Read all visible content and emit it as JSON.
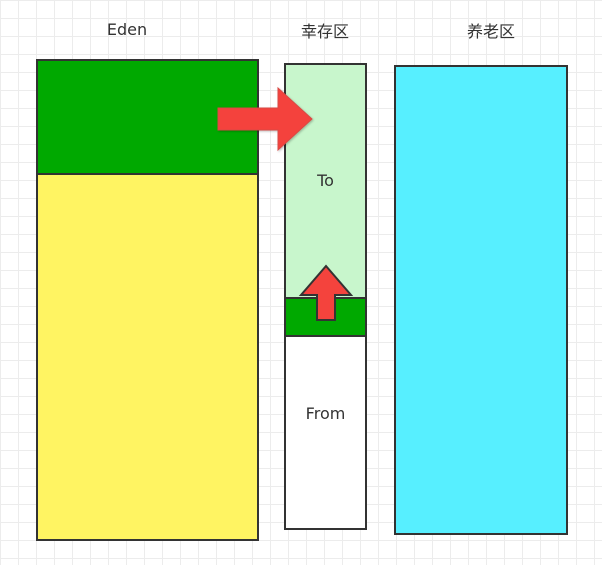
{
  "labels": {
    "eden": "Eden",
    "survivor": "幸存区",
    "old": "养老区",
    "to": "To",
    "from": "From"
  },
  "colors": {
    "eden_used": "#00a900",
    "eden_free": "#fff462",
    "to_space": "#c8f6cc",
    "from_used": "#00a900",
    "from_free": "#ffffff",
    "old_space": "#57efff",
    "arrow_fill": "#f4433d",
    "border": "#333333"
  },
  "icons": {
    "eden_to_survivor_arrow": "arrow-right-icon",
    "from_to_to_arrow": "arrow-up-icon"
  }
}
